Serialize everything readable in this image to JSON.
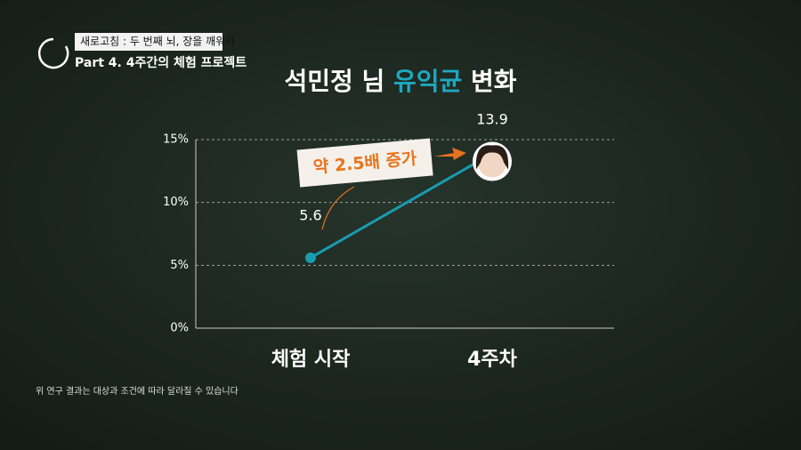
{
  "header": {
    "series_title": "새로고침 : 두 번째 뇌, 장을 깨워라",
    "episode": "Part 4. 4주간의 체험 프로젝트"
  },
  "chart_data": {
    "type": "line",
    "title": [
      "석민정 님",
      "유익균",
      "변화"
    ],
    "categories": [
      "체험 시작",
      "4주차"
    ],
    "values": [
      5.6,
      13.9
    ],
    "color": "#1a9bb0",
    "ylim": [
      0,
      15
    ],
    "yticks": [
      {
        "value": 0,
        "label": "0%"
      },
      {
        "value": 5,
        "label": "5%"
      },
      {
        "value": 10,
        "label": "10%"
      },
      {
        "value": 15,
        "label": "15%"
      }
    ],
    "grid": true,
    "annotation": "약 2.5배 증가"
  },
  "footnote": "위 연구 결과는 대상과 조건에 따라 달라질 수 있습니다"
}
